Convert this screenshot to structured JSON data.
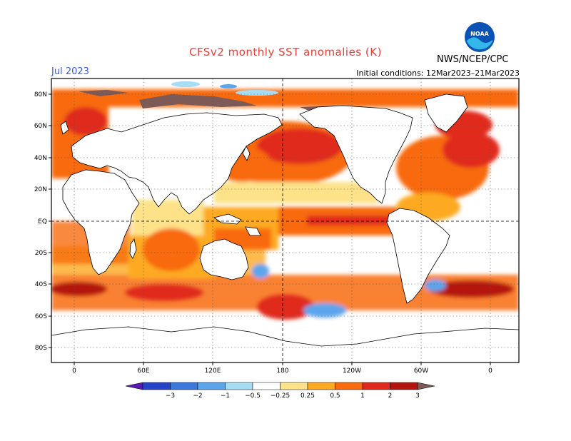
{
  "header": {
    "title": "CFSv2 monthly SST anomalies (K)",
    "month": "Jul 2023",
    "initial_conditions": "Initial conditions: 12Mar2023–21Mar2023",
    "org": "NWS/NCEP/CPC",
    "logo_text": "NOAA"
  },
  "map": {
    "lat_labels": [
      "80N",
      "60N",
      "40N",
      "20N",
      "EQ",
      "20S",
      "40S",
      "60S",
      "80S"
    ],
    "lon_labels": [
      "0",
      "60E",
      "120E",
      "180",
      "120W",
      "60W",
      "0"
    ]
  },
  "colorbar": {
    "labels": [
      "−3",
      "−2",
      "−1",
      "−0.5",
      "−0.25",
      "0.25",
      "0.5",
      "1",
      "2",
      "3"
    ],
    "colors": [
      "#5a1bb0",
      "#2443c8",
      "#3a78dc",
      "#5ba5ec",
      "#a6dcf4",
      "#ffffff",
      "#fde28a",
      "#fdaa22",
      "#f86b0e",
      "#e0291c",
      "#b41410",
      "#7d5a55"
    ]
  }
}
